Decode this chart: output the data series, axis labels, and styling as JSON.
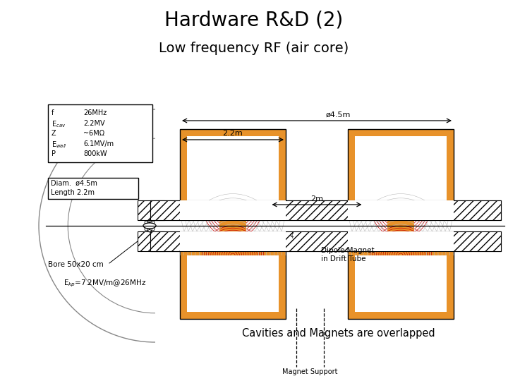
{
  "title": "Hardware R&D (2)",
  "subtitle": "Low frequency RF (air core)",
  "title_fontsize": 20,
  "subtitle_fontsize": 14,
  "bg_color": "#ffffff",
  "orange_color": "#E8922A",
  "red_line_color": "#CC0000",
  "gray_line_color": "#BBBBBB",
  "params": [
    [
      "f",
      "26MHz"
    ],
    [
      "E_cav",
      "2.2MV"
    ],
    [
      "Z",
      "~6MΩ"
    ],
    [
      "E_wall",
      "6.1MV/m"
    ],
    [
      "P",
      "800kW"
    ]
  ],
  "diam_text1": "Diam.  ø4.5m",
  "diam_text2": "Length 2.2m",
  "bore_text": "Bore 50x20 cm",
  "ekp_text": "E_kp=7.2MV/m@26MHz",
  "dim1_text": "ø4.5m",
  "dim2_text": "2.2m",
  "dim3_text": "2m",
  "overlap_text": "Cavities and Magnets are overlapped",
  "magnet_support_text": "Magnet Support",
  "dipole_text": "Dipole Magnet\nin Drift Tube",
  "centerline_label": "¢"
}
